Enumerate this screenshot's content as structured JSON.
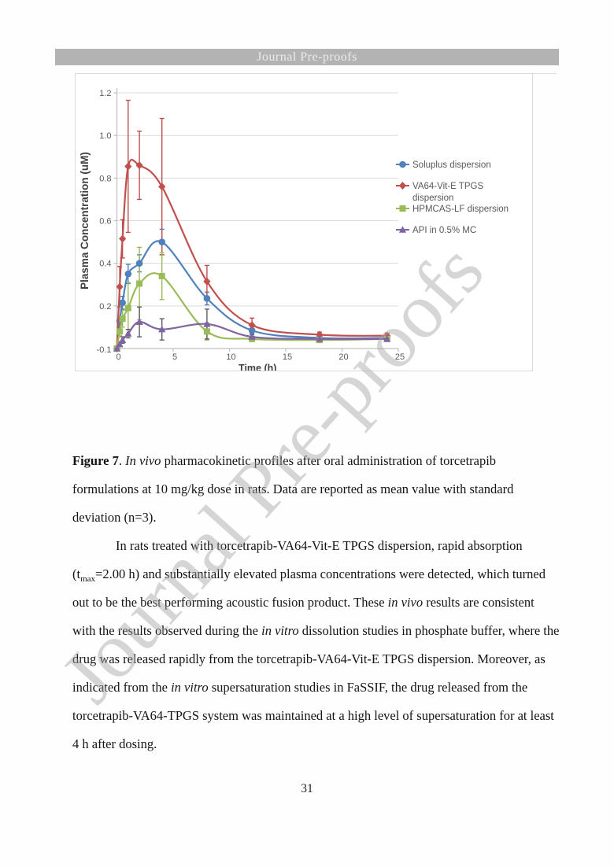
{
  "header": {
    "banner_text": "Journal Pre-proofs"
  },
  "watermark": {
    "text": "Journal Pre-proofs"
  },
  "figure": {
    "chart_data": {
      "type": "line",
      "xlabel": "Time (h)",
      "ylabel": "Plasma Concentration (uM)",
      "xlim": [
        0,
        25
      ],
      "ylim": [
        0,
        1.2
      ],
      "x_tick_labels": [
        "0",
        "5",
        "10",
        "15",
        "20",
        "25"
      ],
      "y_tick_labels": [
        "1.2",
        "1.0",
        "0.8",
        "0.6",
        "0.4",
        "0.2"
      ],
      "y_axis_min_label": "-0.1",
      "grid": "horizontal",
      "legend_position": "right",
      "x": [
        0,
        0.25,
        0.5,
        1,
        2,
        4,
        8,
        12,
        18,
        24
      ],
      "series": [
        {
          "name": "Soluplus dispersion",
          "legend_lines": [
            "Soluplus dispersion"
          ],
          "color": "#4F81BD",
          "marker": "circle",
          "values": [
            0,
            0.13,
            0.215,
            0.35,
            0.4,
            0.5,
            0.235,
            0.085,
            0.05,
            0.05
          ],
          "errors": [
            0,
            0.02,
            0.03,
            0.045,
            0.04,
            0.06,
            0.03,
            0.02,
            0.01,
            0.01
          ]
        },
        {
          "name": "VA64-Vit-E TPGS dispersion",
          "legend_lines": [
            "VA64-Vit-E TPGS",
            "dispersion"
          ],
          "color": "#C0504D",
          "marker": "diamond",
          "values": [
            0,
            0.29,
            0.515,
            0.855,
            0.86,
            0.76,
            0.315,
            0.11,
            0.065,
            0.06
          ],
          "errors": [
            0,
            0.095,
            0.09,
            0.31,
            0.16,
            0.32,
            0.075,
            0.033,
            0.012,
            0.012
          ]
        },
        {
          "name": "HPMCAS-LF dispersion",
          "legend_lines": [
            "HPMCAS-LF dispersion"
          ],
          "color": "#9BBB59",
          "marker": "square",
          "values": [
            0,
            0.08,
            0.14,
            0.19,
            0.305,
            0.34,
            0.08,
            0.045,
            0.04,
            0.045
          ],
          "errors": [
            0,
            0.02,
            0.04,
            0.12,
            0.17,
            0.11,
            0.04,
            0.012,
            0.01,
            0.01
          ]
        },
        {
          "name": "API in 0.5% MC",
          "legend_lines": [
            "API in 0.5% MC"
          ],
          "color": "#8064A2",
          "marker": "triangle",
          "error_color": "#5f5a66",
          "values": [
            0,
            0.02,
            0.04,
            0.07,
            0.125,
            0.09,
            0.115,
            0.055,
            0.045,
            0.045
          ],
          "errors": [
            0,
            0.01,
            0.015,
            0.02,
            0.07,
            0.05,
            0.07,
            0.015,
            0.01,
            0.01
          ]
        }
      ]
    }
  },
  "document": {
    "caption": {
      "lines": [
        {
          "segments": [
            [
              "Figure 7",
              "b"
            ],
            [
              ". ",
              ""
            ],
            [
              "In vivo",
              "i"
            ],
            [
              " pharmacokinetic profiles after oral administration of torcetrapib",
              ""
            ]
          ]
        },
        {
          "segments": [
            [
              "formulations at 10 mg/kg dose in rats. Data are reported as mean value with standard",
              ""
            ]
          ]
        },
        {
          "segments": [
            [
              "deviation (n=3).",
              ""
            ]
          ]
        }
      ]
    },
    "paragraph": {
      "lines": [
        {
          "indent": true,
          "segments": [
            [
              "In rats treated with torcetrapib-VA64-Vit-E TPGS dispersion, rapid absorption",
              ""
            ]
          ]
        },
        {
          "segments": [
            [
              "(t",
              ""
            ],
            [
              "max",
              "sub"
            ],
            [
              "=2.00 h) and substantially elevated plasma concentrations were detected, which turned",
              ""
            ]
          ]
        },
        {
          "segments": [
            [
              "out to be the best performing acoustic fusion product.  These ",
              ""
            ],
            [
              "in vivo",
              "i"
            ],
            [
              " results are consistent",
              ""
            ]
          ]
        },
        {
          "segments": [
            [
              "with the results observed during the ",
              ""
            ],
            [
              "in vitro",
              "i"
            ],
            [
              " dissolution studies in phosphate buffer, where the",
              ""
            ]
          ]
        },
        {
          "segments": [
            [
              "drug was released rapidly from the torcetrapib-VA64-Vit-E TPGS dispersion. Moreover, as",
              ""
            ]
          ]
        },
        {
          "segments": [
            [
              "indicated from the ",
              ""
            ],
            [
              "in vitro",
              "i"
            ],
            [
              " supersaturation studies in FaSSIF, the drug released from the",
              ""
            ]
          ]
        },
        {
          "segments": [
            [
              "torcetrapib-VA64-TPGS system was maintained at a high level of supersaturation for at least",
              ""
            ]
          ]
        },
        {
          "segments": [
            [
              "4 h after dosing.",
              ""
            ]
          ]
        }
      ]
    },
    "page_number": "31"
  }
}
